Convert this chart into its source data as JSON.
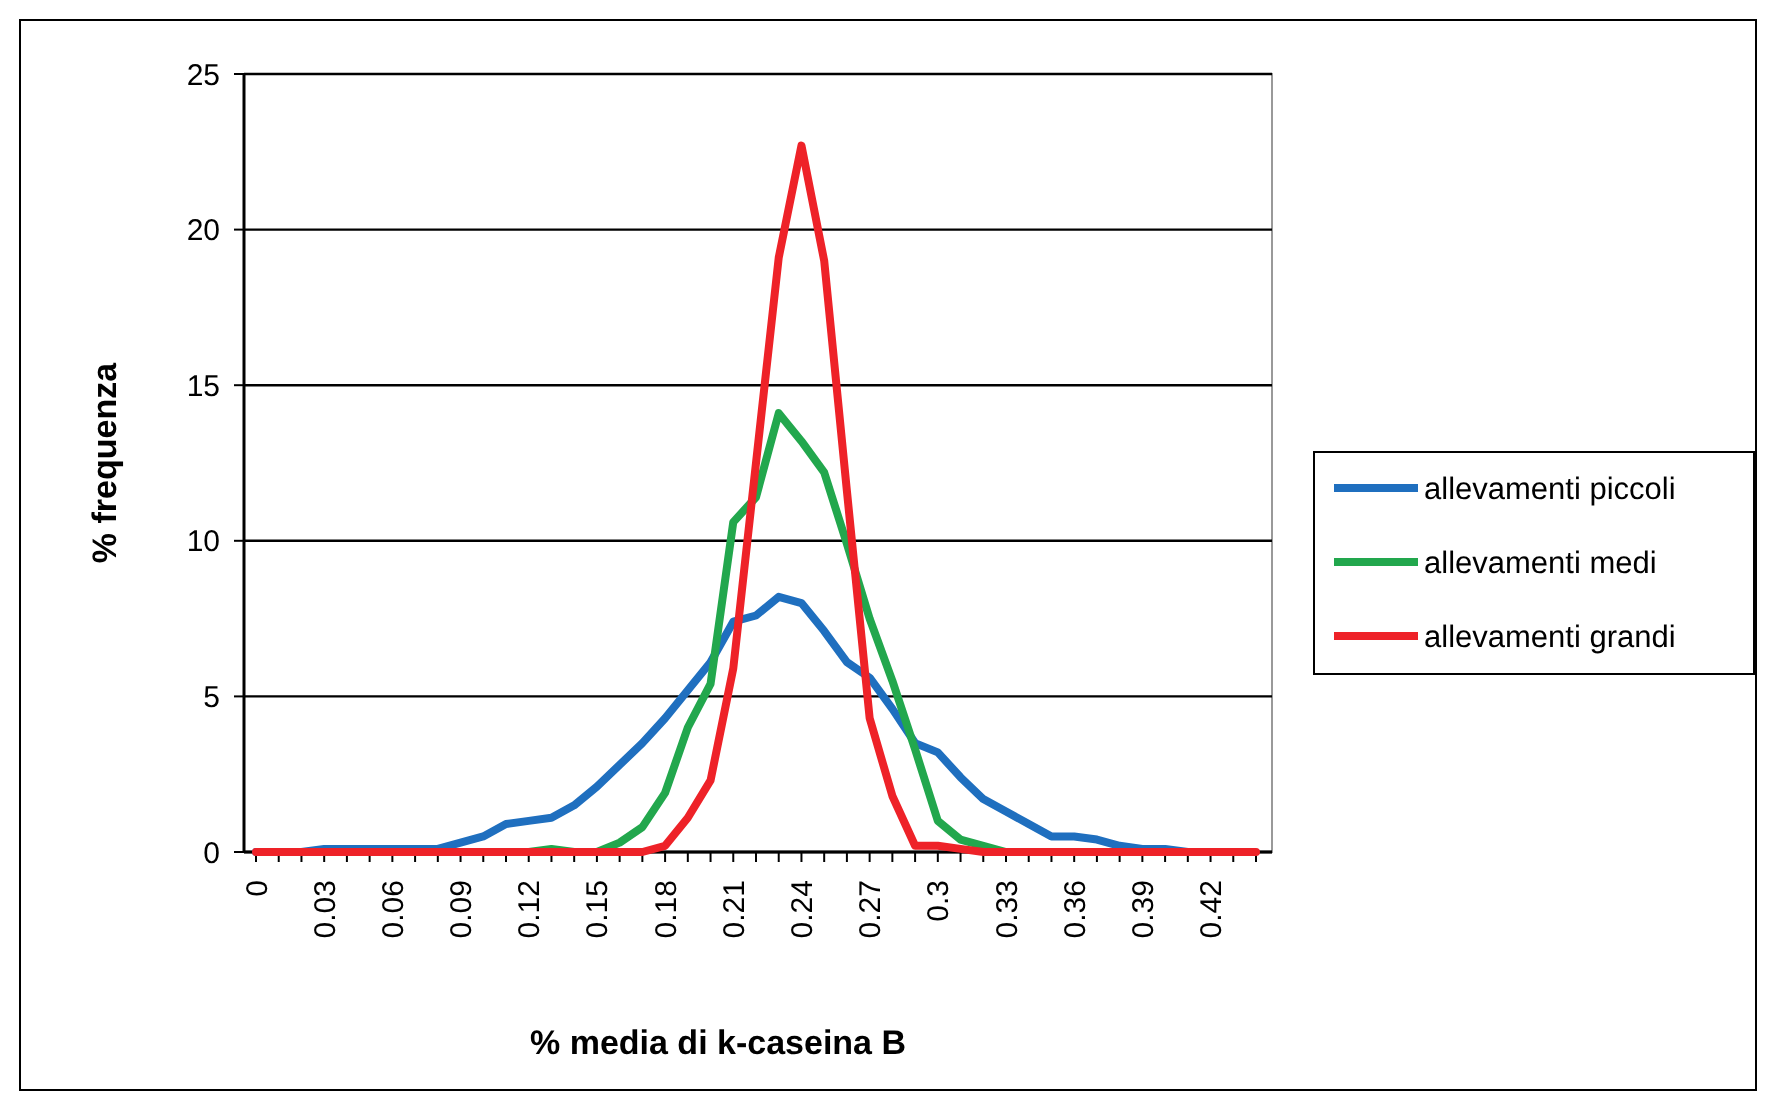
{
  "chart_data": {
    "type": "line",
    "xlabel": "% media di k-caseina B",
    "ylabel": "% frequenza",
    "categories": [
      "0",
      null,
      null,
      "0.03",
      null,
      null,
      "0.06",
      null,
      null,
      "0.09",
      null,
      null,
      "0.12",
      null,
      null,
      "0.15",
      null,
      null,
      "0.18",
      null,
      null,
      "0.21",
      null,
      null,
      "0.24",
      null,
      null,
      "0.27",
      null,
      null,
      "0.3",
      null,
      null,
      "0.33",
      null,
      null,
      "0.36",
      null,
      null,
      "0.39",
      null,
      null,
      "0.42",
      null,
      null
    ],
    "series": [
      {
        "name": "allevamenti piccoli",
        "color": "#1f6fbf",
        "values": [
          0,
          0,
          0,
          0.1,
          0.1,
          0.1,
          0.1,
          0.1,
          0.1,
          0.3,
          0.5,
          0.9,
          1.0,
          1.1,
          1.5,
          2.1,
          2.8,
          3.5,
          4.3,
          5.2,
          6.1,
          7.4,
          7.6,
          8.2,
          8.0,
          7.1,
          6.1,
          5.6,
          4.6,
          3.5,
          3.2,
          2.4,
          1.7,
          1.3,
          0.9,
          0.5,
          0.5,
          0.4,
          0.2,
          0.1,
          0.1,
          0,
          0,
          null,
          null
        ]
      },
      {
        "name": "allevamenti medi",
        "color": "#22a74d",
        "values": [
          null,
          null,
          null,
          null,
          null,
          null,
          null,
          null,
          null,
          null,
          null,
          null,
          0,
          0.1,
          0,
          0,
          0.3,
          0.8,
          1.9,
          4.0,
          5.4,
          10.6,
          11.4,
          14.1,
          13.2,
          12.2,
          9.9,
          7.5,
          5.5,
          3.3,
          1.0,
          0.4,
          0.2,
          0,
          null,
          null,
          null,
          null,
          null,
          null,
          null,
          null,
          null,
          null,
          null
        ]
      },
      {
        "name": "allevamenti grandi",
        "color": "#ee2228",
        "values": [
          0,
          0,
          0,
          0,
          0,
          0,
          0,
          0,
          0,
          0,
          0,
          0,
          0,
          0,
          0,
          0,
          0,
          0,
          0.2,
          1.1,
          2.3,
          5.9,
          12.5,
          19.1,
          22.7,
          19.0,
          11.6,
          4.3,
          1.8,
          0.2,
          0.2,
          0.1,
          0,
          0,
          0,
          0,
          0,
          0,
          0,
          0,
          0,
          0,
          0,
          0,
          0
        ]
      }
    ],
    "ylim": [
      0,
      25
    ],
    "yticks": [
      0,
      5,
      10,
      15,
      20,
      25
    ],
    "grid": "y",
    "legend": "right",
    "marker": "none",
    "line_style": "solid"
  }
}
